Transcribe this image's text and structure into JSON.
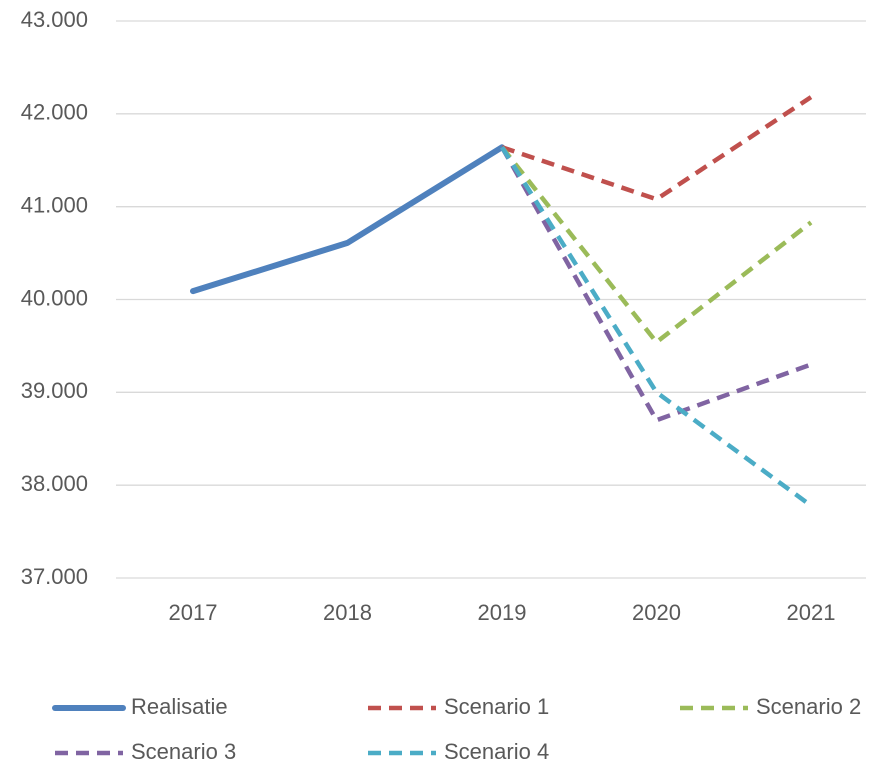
{
  "chart_data": {
    "type": "line",
    "categories": [
      "2017",
      "2018",
      "2019",
      "2020",
      "2021"
    ],
    "series": [
      {
        "name": "Realisatie",
        "color": "#4f81bd",
        "dashed": false,
        "values": [
          40090,
          40610,
          41640,
          null,
          null
        ]
      },
      {
        "name": "Scenario 1",
        "color": "#c0504d",
        "dashed": true,
        "values": [
          null,
          null,
          41640,
          41080,
          42180
        ]
      },
      {
        "name": "Scenario 2",
        "color": "#9bbb59",
        "dashed": true,
        "values": [
          null,
          null,
          41640,
          39540,
          40830
        ]
      },
      {
        "name": "Scenario 3",
        "color": "#8064a2",
        "dashed": true,
        "values": [
          null,
          null,
          41640,
          38700,
          39300
        ]
      },
      {
        "name": "Scenario 4",
        "color": "#4bacc6",
        "dashed": true,
        "values": [
          null,
          null,
          41640,
          39000,
          37780
        ]
      }
    ],
    "ylim": [
      37000,
      43000
    ],
    "yticks": [
      {
        "value": 37000,
        "label": "37.000"
      },
      {
        "value": 38000,
        "label": "38.000"
      },
      {
        "value": 39000,
        "label": "39.000"
      },
      {
        "value": 40000,
        "label": "40.000"
      },
      {
        "value": 41000,
        "label": "41.000"
      },
      {
        "value": 42000,
        "label": "42.000"
      },
      {
        "value": 43000,
        "label": "43.000"
      }
    ],
    "grid": true,
    "legend": "bottom"
  }
}
